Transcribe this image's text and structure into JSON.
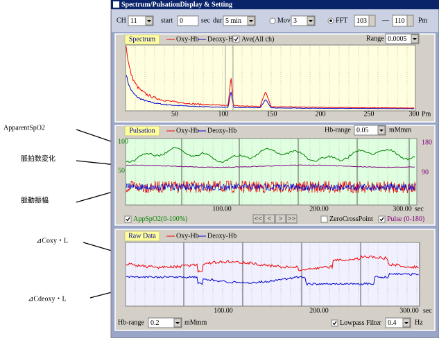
{
  "annotations": [
    "ApparentSpO2",
    "脈拍数変化",
    "脈動振幅",
    "⊿Coxy・L",
    "⊿Cdeoxy・L"
  ],
  "window": {
    "title": "Spectrum/PulsationDisplay & Setting"
  },
  "toolbar": {
    "ch_label": "CH",
    "ch": "11",
    "start_label": "start",
    "start": "0",
    "start_unit": "sec",
    "dur_label": "dur",
    "dur": "5 min",
    "mov_label": "Mov",
    "mov": "3",
    "fft_label": "FFT",
    "from": "103",
    "dash": "—",
    "to": "110",
    "unit": "Pm"
  },
  "spectrum": {
    "header": "Spectrum",
    "legend": [
      "Oxy-Hb",
      "Deoxy-Hb"
    ],
    "ave": "Ave(All ch)",
    "range_label": "Range",
    "range": "0.0005",
    "xticks": [
      "50",
      "100",
      "150",
      "200",
      "250",
      "300"
    ],
    "x_unit": "Pm"
  },
  "pulsation": {
    "header": "Pulsation",
    "legend": [
      "Oxy-Hb",
      "Deoxy-Hb"
    ],
    "hb_range_label": "Hb-range",
    "hb_range": "0.05",
    "hb_unit": "mMmm",
    "left_ticks": [
      "100",
      "50"
    ],
    "right_ticks": [
      "180",
      "90"
    ],
    "xticks": [
      "100.00",
      "200.00",
      "300.00"
    ],
    "x_unit": "sec",
    "spo2": "AppSpO2(0-100%)",
    "nav": [
      "<<",
      "<",
      ">",
      ">>"
    ],
    "zero": "ZeroCrossPoint",
    "pulse": "Pulse (0-180)"
  },
  "raw": {
    "header": "Raw Data",
    "legend": [
      "Oxy-Hb",
      "Deoxy-Hb"
    ],
    "xticks": [
      "100.00",
      "200.00",
      "300.00"
    ],
    "x_unit": "sec",
    "hb_range_label": "Hb-range",
    "hb_range": "0.2",
    "hb_unit": "mMmm",
    "lowpass": "Lowpass Filter",
    "lowpass_value": "0.4",
    "lowpass_unit": "Hz"
  }
}
